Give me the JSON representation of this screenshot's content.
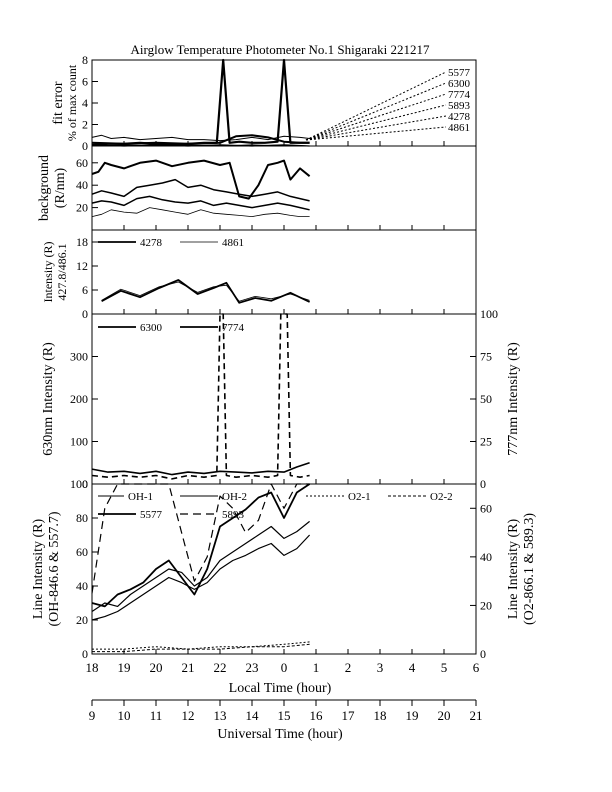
{
  "title": "Airglow Temperature Photometer No.1  Shigaraki  221217",
  "x_axes": {
    "local": {
      "label": "Local Time (hour)",
      "ticks": [
        "18",
        "19",
        "20",
        "21",
        "22",
        "23",
        "0",
        "1",
        "2",
        "3",
        "4",
        "5",
        "6"
      ]
    },
    "universal": {
      "label": "Universal Time (hour)",
      "ticks": [
        "9",
        "10",
        "11",
        "12",
        "13",
        "14",
        "15",
        "16",
        "17",
        "18",
        "19",
        "20",
        "21"
      ]
    }
  },
  "panels": {
    "fit_error": {
      "ylabel": "fit error",
      "ylabel2": "% of max count",
      "yticks": [
        "0",
        "2",
        "4",
        "6",
        "8"
      ],
      "legend": [
        "5577",
        "6300",
        "7774",
        "5893",
        "4278",
        "4861"
      ]
    },
    "background": {
      "ylabel": "background",
      "ylabel2": "(R/nm)",
      "yticks": [
        "20",
        "40",
        "60"
      ]
    },
    "intensity_blue": {
      "ylabel": "Intensity (R)",
      "ylabel2": "427.8/486.1",
      "yticks": [
        "0",
        "6",
        "12",
        "18"
      ],
      "legend": [
        "4278",
        "4861"
      ]
    },
    "intensity_red": {
      "ylabel": "630nm Intensity (R)",
      "ylabel_right": "777nm Intensity (R)",
      "yticks": [
        "0",
        "100",
        "200",
        "300"
      ],
      "yticks_right": [
        "0",
        "25",
        "50",
        "75",
        "100"
      ],
      "legend": [
        "6300",
        "7774"
      ]
    },
    "line_intensity": {
      "ylabel": "Line Intensity (R)",
      "ylabel2": "(OH-846.6 & 557.7)",
      "ylabel_right": "Line Intensity (R)",
      "ylabel_right2": "(O2-866.1 & 589.3)",
      "yticks": [
        "0",
        "20",
        "40",
        "60",
        "80",
        "100"
      ],
      "yticks_right": [
        "0",
        "20",
        "40",
        "60"
      ],
      "legend": [
        "OH-1",
        "OH-2",
        "O2-1",
        "O2-2",
        "5577",
        "5893"
      ]
    }
  },
  "chart_data": [
    {
      "type": "line",
      "title": "Airglow Temperature Photometer No.1  Shigaraki  221217",
      "xlabel": "Universal Time (hour)",
      "ylabel": "fit error % of max count",
      "xlim": [
        9,
        21
      ],
      "ylim": [
        0,
        8
      ],
      "series": [
        {
          "name": "5577",
          "x": [
            9.0,
            9.5,
            10.0,
            10.5,
            11.0,
            11.5,
            12.0,
            12.5,
            12.9,
            13.1,
            13.3,
            13.6,
            14.0,
            14.4,
            14.8,
            15.0,
            15.2,
            15.5,
            15.8
          ],
          "y": [
            0.1,
            0.2,
            0.2,
            0.3,
            0.2,
            0.1,
            0.2,
            0.3,
            0.3,
            8.0,
            0.3,
            0.4,
            0.3,
            0.3,
            0.4,
            8.0,
            0.3,
            0.3,
            0.3
          ]
        },
        {
          "name": "6300",
          "x": [
            9.0,
            9.3,
            9.6,
            10.0,
            10.5,
            11.0,
            11.5,
            12.0,
            12.5,
            13.0,
            13.5,
            14.0,
            14.5,
            15.0,
            15.5,
            15.8
          ],
          "y": [
            0.8,
            1.0,
            0.7,
            0.8,
            0.6,
            0.7,
            0.8,
            0.6,
            0.6,
            0.5,
            0.6,
            0.8,
            0.6,
            0.9,
            0.8,
            0.7
          ]
        },
        {
          "name": "7774",
          "x": [
            9.0,
            10.0,
            11.0,
            12.0,
            13.0,
            13.5,
            14.0,
            14.5,
            15.0,
            15.5,
            15.8
          ],
          "y": [
            0.3,
            0.2,
            0.3,
            0.2,
            0.3,
            0.9,
            1.0,
            0.8,
            0.4,
            0.3,
            0.3
          ]
        },
        {
          "name": "5893",
          "x": [
            9.0,
            10.0,
            11.0,
            12.0,
            13.0,
            14.0,
            15.0,
            15.8
          ],
          "y": [
            0.1,
            0.0,
            0.1,
            0.0,
            0.1,
            0.0,
            0.1,
            0.0
          ]
        },
        {
          "name": "4278",
          "x": [
            9.0,
            10.0,
            11.0,
            12.0,
            13.0,
            14.0,
            15.0,
            15.8
          ],
          "y": [
            0.0,
            0.1,
            0.0,
            0.1,
            0.0,
            0.1,
            0.0,
            0.0
          ]
        },
        {
          "name": "4861",
          "x": [
            9.0,
            10.0,
            11.0,
            12.0,
            13.0,
            14.0,
            15.0,
            15.8
          ],
          "y": [
            0.0,
            0.0,
            0.1,
            0.0,
            0.0,
            0.0,
            0.1,
            0.0
          ]
        }
      ]
    },
    {
      "type": "line",
      "xlabel": "Universal Time (hour)",
      "ylabel": "background (R/nm)",
      "xlim": [
        9,
        21
      ],
      "ylim": [
        0,
        75
      ],
      "series": [
        {
          "x": [
            9.0,
            9.2,
            9.4,
            9.6,
            10.0,
            10.5,
            11.0,
            11.5,
            12.0,
            12.5,
            13.0,
            13.3,
            13.6,
            13.9,
            14.2,
            14.5,
            14.8,
            15.0,
            15.2,
            15.5,
            15.8
          ],
          "y": [
            50,
            52,
            60,
            58,
            55,
            60,
            62,
            57,
            60,
            62,
            58,
            60,
            30,
            28,
            40,
            58,
            60,
            62,
            45,
            55,
            48
          ]
        },
        {
          "x": [
            9.0,
            9.3,
            9.6,
            10.0,
            10.4,
            10.8,
            11.2,
            11.6,
            12.0,
            12.4,
            12.8,
            13.2,
            13.6,
            14.0,
            14.4,
            14.8,
            15.2,
            15.5,
            15.8
          ],
          "y": [
            32,
            35,
            33,
            30,
            38,
            40,
            42,
            45,
            38,
            40,
            36,
            34,
            32,
            30,
            32,
            34,
            30,
            28,
            26
          ]
        },
        {
          "x": [
            9.0,
            9.3,
            9.6,
            10.0,
            10.4,
            10.8,
            11.2,
            11.6,
            12.0,
            12.4,
            12.8,
            13.2,
            13.6,
            14.0,
            14.4,
            14.8,
            15.2,
            15.5,
            15.8
          ],
          "y": [
            24,
            26,
            25,
            22,
            28,
            30,
            27,
            25,
            24,
            26,
            22,
            24,
            22,
            20,
            22,
            24,
            22,
            20,
            18
          ]
        },
        {
          "x": [
            9.0,
            9.3,
            9.6,
            10.0,
            10.4,
            10.8,
            11.2,
            11.6,
            12.0,
            12.4,
            12.8,
            13.2,
            13.6,
            14.0,
            14.4,
            14.8,
            15.2,
            15.5,
            15.8
          ],
          "y": [
            12,
            14,
            18,
            16,
            15,
            20,
            18,
            16,
            14,
            18,
            15,
            14,
            13,
            12,
            14,
            15,
            13,
            12,
            12
          ]
        }
      ]
    },
    {
      "type": "line",
      "xlabel": "Universal Time (hour)",
      "ylabel": "Intensity (R) 427.8/486.1",
      "xlim": [
        9,
        21
      ],
      "ylim": [
        0,
        21
      ],
      "series": [
        {
          "name": "4278",
          "x": [
            9.3,
            9.9,
            10.5,
            11.1,
            11.7,
            12.3,
            12.8,
            13.2,
            13.6,
            14.1,
            14.6,
            15.2,
            15.8
          ],
          "y": [
            3.2,
            5.8,
            4.2,
            6.5,
            8.5,
            5.0,
            6.5,
            7.8,
            2.8,
            4.0,
            3.3,
            5.3,
            3.0
          ]
        },
        {
          "name": "4861",
          "x": [
            9.3,
            9.9,
            10.5,
            11.1,
            11.7,
            12.3,
            12.8,
            13.2,
            13.6,
            14.1,
            14.6,
            15.2,
            15.8
          ],
          "y": [
            3.4,
            6.2,
            4.6,
            6.8,
            8.0,
            5.4,
            6.8,
            7.2,
            3.2,
            4.4,
            3.8,
            5.0,
            3.4
          ]
        }
      ]
    },
    {
      "type": "line",
      "xlabel": "Universal Time (hour)",
      "ylabel": "630nm Intensity (R)",
      "ylabel_right": "777nm Intensity (R)",
      "xlim": [
        9,
        21
      ],
      "ylim": [
        0,
        400
      ],
      "ylim_right": [
        0,
        100
      ],
      "series": [
        {
          "name": "6300",
          "x": [
            9.0,
            9.5,
            10.0,
            10.5,
            11.0,
            11.5,
            12.0,
            12.5,
            13.0,
            13.5,
            14.0,
            14.5,
            15.0,
            15.4,
            15.8
          ],
          "y": [
            35,
            28,
            30,
            25,
            30,
            22,
            28,
            25,
            30,
            28,
            26,
            30,
            28,
            40,
            50
          ]
        },
        {
          "name": "7774",
          "x": [
            9.0,
            9.5,
            10.0,
            10.5,
            11.0,
            11.5,
            12.0,
            12.5,
            12.9,
            13.0,
            13.1,
            13.2,
            13.5,
            14.0,
            14.5,
            14.8,
            14.9,
            15.0,
            15.1,
            15.2,
            15.5,
            15.8
          ],
          "y": [
            5,
            4,
            5,
            4,
            5,
            3,
            5,
            4,
            5,
            100,
            100,
            5,
            4,
            5,
            4,
            5,
            100,
            100,
            100,
            5,
            4,
            5
          ]
        }
      ]
    },
    {
      "type": "line",
      "xlabel": "Universal Time (hour)",
      "ylabel": "Line Intensity (R) (OH-846.6 & 557.7)",
      "ylabel_right": "Line Intensity (R) (O2-866.1 & 589.3)",
      "xlim": [
        9,
        21
      ],
      "ylim": [
        0,
        100
      ],
      "ylim_right": [
        0,
        70
      ],
      "series": [
        {
          "name": "OH-1",
          "x": [
            9.0,
            9.4,
            9.8,
            10.2,
            10.6,
            11.0,
            11.4,
            11.8,
            12.2,
            12.6,
            13.0,
            13.4,
            13.8,
            14.2,
            14.6,
            15.0,
            15.4,
            15.8
          ],
          "y": [
            25,
            30,
            28,
            35,
            40,
            45,
            50,
            48,
            40,
            45,
            55,
            60,
            65,
            70,
            75,
            68,
            72,
            78
          ]
        },
        {
          "name": "OH-2",
          "x": [
            9.0,
            9.4,
            9.8,
            10.2,
            10.6,
            11.0,
            11.4,
            11.8,
            12.2,
            12.6,
            13.0,
            13.4,
            13.8,
            14.2,
            14.6,
            15.0,
            15.4,
            15.8
          ],
          "y": [
            20,
            22,
            25,
            30,
            35,
            40,
            45,
            42,
            38,
            42,
            50,
            55,
            58,
            62,
            65,
            58,
            62,
            70
          ]
        },
        {
          "name": "O2-1",
          "x": [
            9.0,
            10.0,
            11.0,
            12.0,
            13.0,
            14.0,
            15.0,
            15.8
          ],
          "y": [
            2,
            2,
            3,
            2,
            3,
            3,
            4,
            5
          ]
        },
        {
          "name": "O2-2",
          "x": [
            9.0,
            10.0,
            11.0,
            12.0,
            13.0,
            14.0,
            15.0,
            15.8
          ],
          "y": [
            1,
            1,
            2,
            2,
            2,
            3,
            3,
            4
          ]
        },
        {
          "name": "5577",
          "x": [
            9.0,
            9.4,
            9.8,
            10.2,
            10.6,
            11.0,
            11.4,
            11.8,
            12.2,
            12.6,
            13.0,
            13.4,
            13.8,
            14.2,
            14.6,
            15.0,
            15.4,
            15.8
          ],
          "y": [
            30,
            28,
            35,
            38,
            42,
            50,
            55,
            45,
            35,
            50,
            75,
            80,
            85,
            92,
            95,
            80,
            95,
            108
          ]
        },
        {
          "name": "5893",
          "x": [
            9.0,
            9.4,
            9.8,
            10.2,
            10.6,
            11.0,
            11.4,
            11.8,
            12.2,
            12.6,
            13.0,
            13.4,
            13.8,
            14.2,
            14.6,
            15.0,
            15.4,
            15.8
          ],
          "y": [
            25,
            60,
            80,
            95,
            90,
            110,
            70,
            50,
            30,
            40,
            65,
            60,
            50,
            55,
            70,
            60,
            75,
            95
          ]
        }
      ]
    }
  ]
}
